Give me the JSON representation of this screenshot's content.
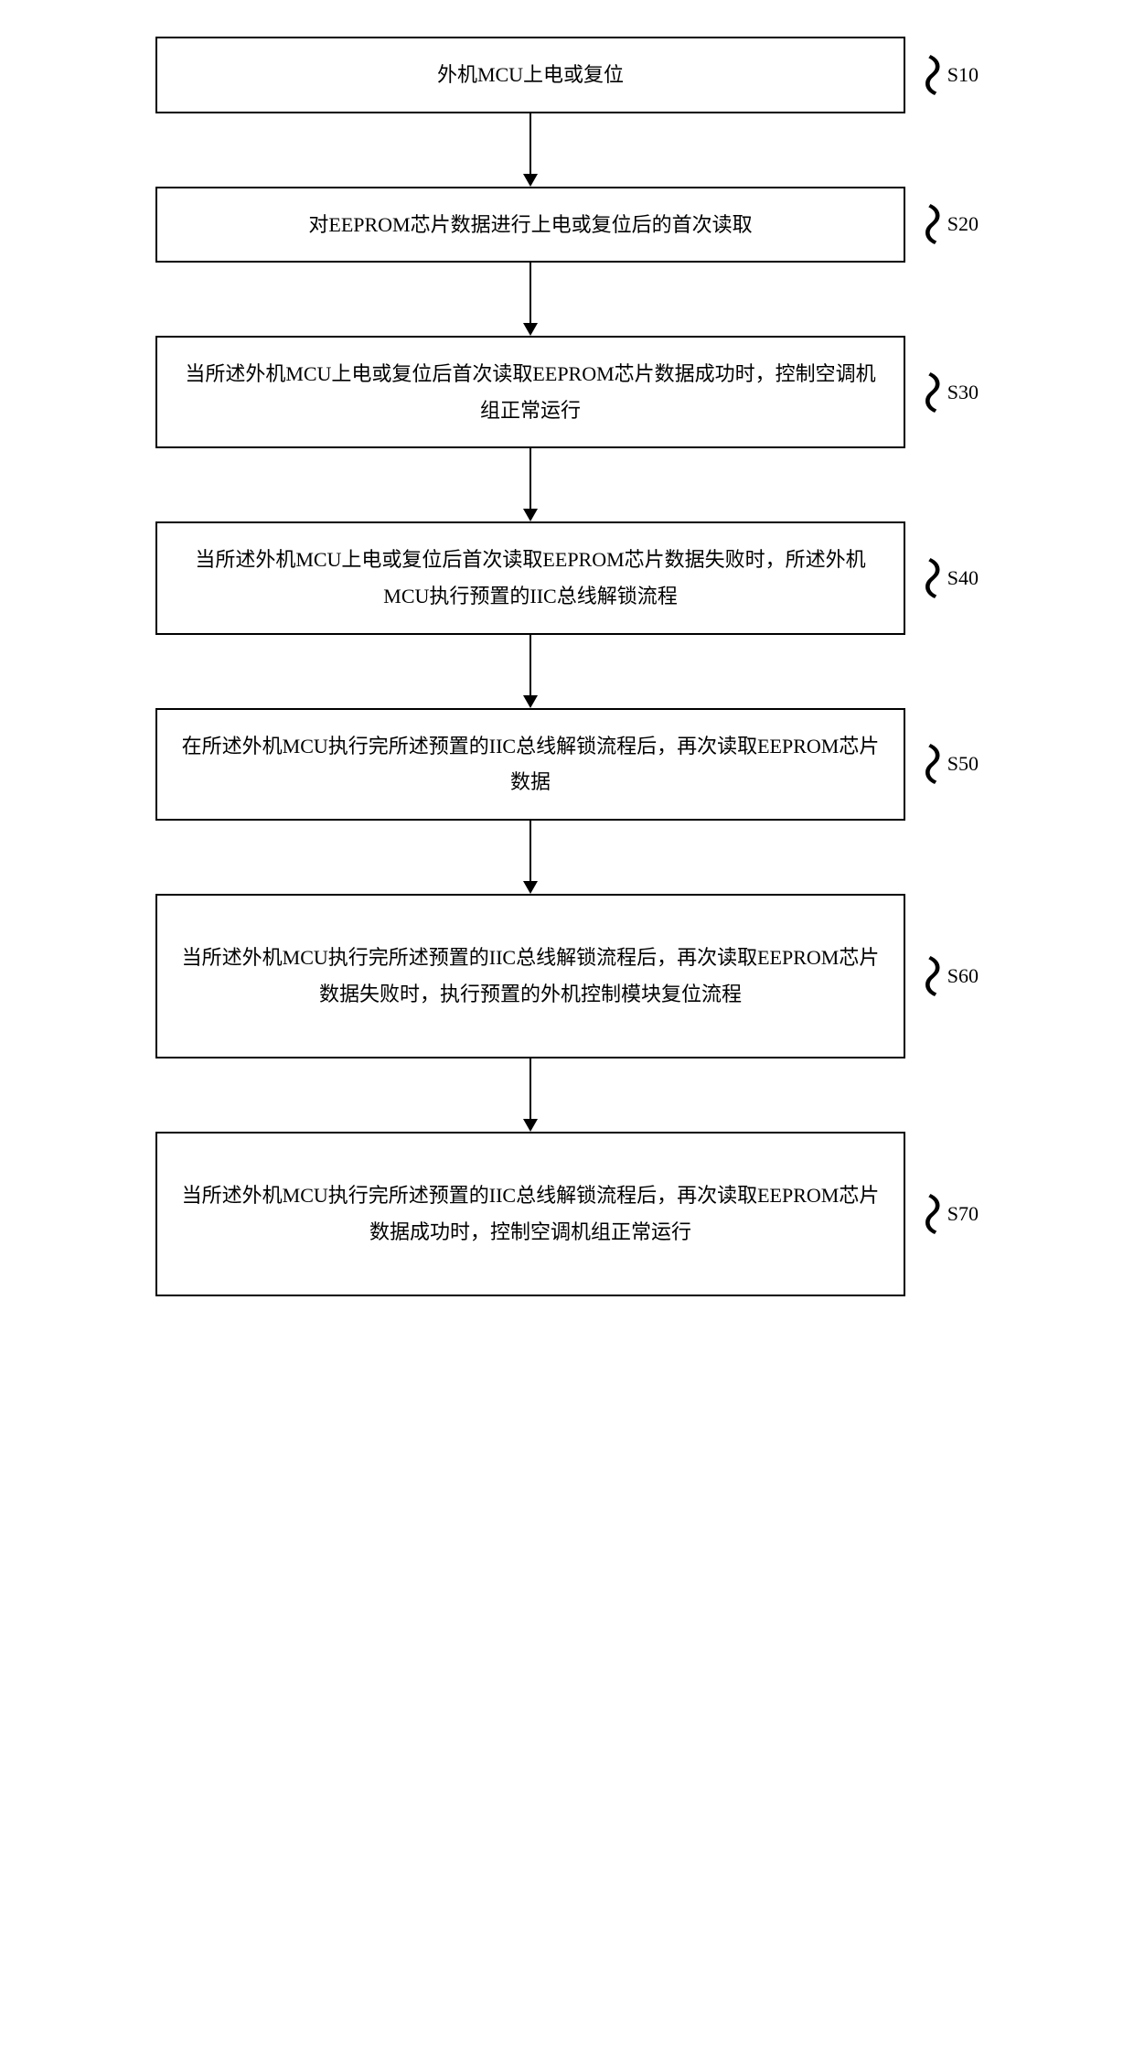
{
  "flowchart": {
    "background_color": "#ffffff",
    "border_color": "#000000",
    "border_width": 2,
    "text_color": "#000000",
    "font_family": "SimSun",
    "font_size": 22,
    "label_font_family": "Times New Roman",
    "label_font_size": 22,
    "arrow_color": "#000000",
    "arrow_line_width": 2,
    "arrow_gap_height": 80,
    "box_max_width": 820,
    "label_column_width": 80,
    "steps": [
      {
        "id": "S10",
        "text": "外机MCU上电或复位",
        "height": "short"
      },
      {
        "id": "S20",
        "text": "对EEPROM芯片数据进行上电或复位后的首次读取",
        "height": "short"
      },
      {
        "id": "S30",
        "text": "当所述外机MCU上电或复位后首次读取EEPROM芯片数据成功时，控制空调机组正常运行",
        "height": "medium"
      },
      {
        "id": "S40",
        "text": "当所述外机MCU上电或复位后首次读取EEPROM芯片数据失败时，所述外机MCU执行预置的IIC总线解锁流程",
        "height": "medium"
      },
      {
        "id": "S50",
        "text": "在所述外机MCU执行完所述预置的IIC总线解锁流程后，再次读取EEPROM芯片数据",
        "height": "medium"
      },
      {
        "id": "S60",
        "text": "当所述外机MCU执行完所述预置的IIC总线解锁流程后，再次读取EEPROM芯片数据失败时，执行预置的外机控制模块复位流程",
        "height": "tall"
      },
      {
        "id": "S70",
        "text": "当所述外机MCU执行完所述预置的IIC总线解锁流程后，再次读取EEPROM芯片数据成功时，控制空调机组正常运行",
        "height": "tall"
      }
    ]
  }
}
